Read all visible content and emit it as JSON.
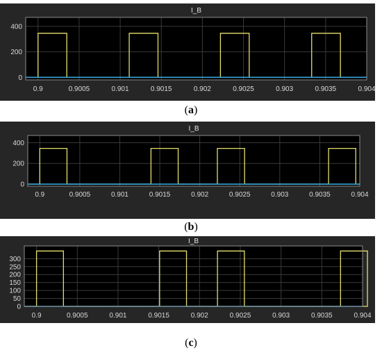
{
  "chart_data": [
    {
      "type": "line",
      "title": "I_B",
      "caption_letter": "a",
      "xlim": [
        0.89985,
        0.904
      ],
      "ylim": [
        -20,
        470
      ],
      "x_ticks": [
        "0.9",
        "0.9005",
        "0.901",
        "0.9015",
        "0.902",
        "0.9025",
        "0.903",
        "0.9035",
        "0.904"
      ],
      "y_ticks": [
        "400",
        "200",
        "0"
      ],
      "grid": true,
      "series": [
        {
          "color": "#e5e06b",
          "pulses": [
            [
              0.9,
              0.90035
            ],
            [
              0.90111,
              0.90146
            ],
            [
              0.90222,
              0.90257
            ],
            [
              0.90333,
              0.90368
            ]
          ],
          "level": 345
        },
        {
          "color": "#3aa3d9",
          "constant": 0
        }
      ]
    },
    {
      "type": "line",
      "title": "I_B",
      "caption_letter": "b",
      "xlim": [
        0.89985,
        0.904
      ],
      "ylim": [
        -20,
        470
      ],
      "x_ticks": [
        "0.9",
        "0.9005",
        "0.901",
        "0.9015",
        "0.902",
        "0.9025",
        "0.903",
        "0.9035",
        "0.904"
      ],
      "y_ticks": [
        "400",
        "200",
        "0"
      ],
      "grid": true,
      "series": [
        {
          "color": "#e5e06b",
          "pulses": [
            [
              0.9,
              0.90034
            ],
            [
              0.90139,
              0.90173
            ],
            [
              0.90222,
              0.90256
            ],
            [
              0.90361,
              0.90395
            ]
          ],
          "level": 345
        },
        {
          "color": "#3aa3d9",
          "constant": 0
        }
      ]
    },
    {
      "type": "line",
      "title": "I_B",
      "caption_letter": "c",
      "xlim": [
        0.89985,
        0.904
      ],
      "ylim": [
        0,
        380
      ],
      "x_ticks": [
        "0.9",
        "0.9005",
        "0.901",
        "0.9015",
        "0.902",
        "0.9025",
        "0.903",
        "0.9035",
        "0.904"
      ],
      "y_ticks": [
        "300",
        "250",
        "200",
        "150",
        "100",
        "50",
        "0"
      ],
      "grid": true,
      "series": [
        {
          "color": "#e5e06b",
          "pulses": [
            [
              0.9,
              0.90033
            ],
            [
              0.90151,
              0.90184
            ],
            [
              0.90222,
              0.90255
            ],
            [
              0.90373,
              0.90406
            ]
          ],
          "level": 348
        },
        {
          "color": "#3aa3d9",
          "constant": 0
        }
      ]
    }
  ]
}
